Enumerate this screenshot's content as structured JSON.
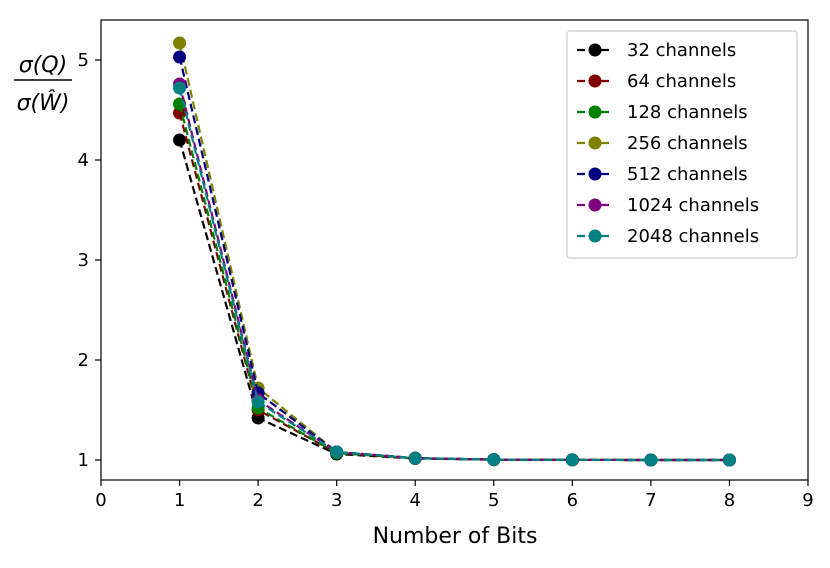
{
  "chart_data": {
    "type": "line",
    "title": "",
    "xlabel": "Number of Bits",
    "ylabel": {
      "numerator": "σ(Q)",
      "denominator": "σ(Ŵ)"
    },
    "xlim": [
      0,
      9
    ],
    "ylim": [
      0.8,
      5.4
    ],
    "x_ticks": [
      0,
      1,
      2,
      3,
      4,
      5,
      6,
      7,
      8,
      9
    ],
    "y_ticks": [
      1,
      2,
      3,
      4,
      5
    ],
    "grid": false,
    "legend_position": "top-right",
    "line_style": "dashed",
    "marker": "circle",
    "x": [
      1,
      2,
      3,
      4,
      5,
      6,
      7,
      8
    ],
    "series": [
      {
        "name": "32 channels",
        "color": "#000000",
        "values": [
          4.2,
          1.42,
          1.06,
          1.015,
          1.004,
          1.001,
          1.0,
          1.0
        ]
      },
      {
        "name": "64 channels",
        "color": "#800000",
        "values": [
          4.47,
          1.5,
          1.07,
          1.017,
          1.004,
          1.001,
          1.0,
          1.0
        ]
      },
      {
        "name": "128 channels",
        "color": "#008000",
        "values": [
          4.56,
          1.52,
          1.07,
          1.018,
          1.004,
          1.001,
          1.0,
          1.0
        ]
      },
      {
        "name": "256 channels",
        "color": "#808000",
        "values": [
          5.17,
          1.72,
          1.08,
          1.019,
          1.004,
          1.001,
          1.0,
          1.0
        ]
      },
      {
        "name": "512 channels",
        "color": "#000080",
        "values": [
          5.03,
          1.67,
          1.08,
          1.019,
          1.004,
          1.001,
          1.0,
          1.0
        ]
      },
      {
        "name": "1024 channels",
        "color": "#800080",
        "values": [
          4.76,
          1.6,
          1.08,
          1.018,
          1.004,
          1.001,
          1.0,
          1.0
        ]
      },
      {
        "name": "2048 channels",
        "color": "#008080",
        "values": [
          4.72,
          1.58,
          1.08,
          1.018,
          1.004,
          1.001,
          1.0,
          1.0
        ]
      }
    ]
  }
}
